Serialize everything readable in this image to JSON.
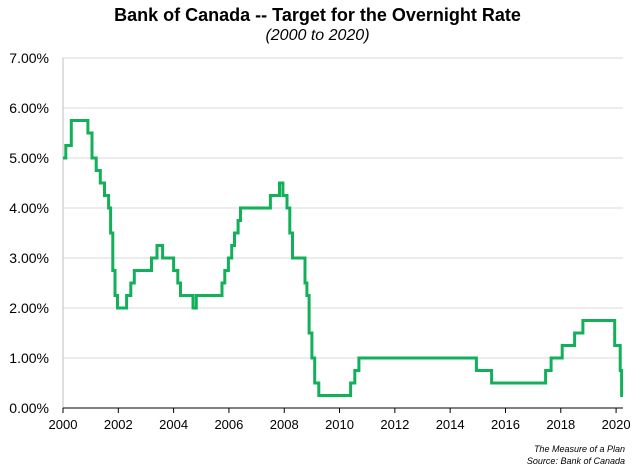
{
  "title": "Bank of Canada -- Target for the Overnight Rate",
  "subtitle": "(2000 to 2020)",
  "credits": {
    "line1": "The Measure of a Plan",
    "line2": "Source: Bank of Canada"
  },
  "colors": {
    "line": "#13B05A",
    "grid": "#d9d9d9",
    "axis": "#000000"
  },
  "chart_data": {
    "type": "line",
    "title": "Bank of Canada -- Target for the Overnight Rate",
    "subtitle": "(2000 to 2020)",
    "xlabel": "",
    "ylabel": "",
    "xlim": [
      2000,
      2020.25
    ],
    "ylim": [
      0,
      7
    ],
    "grid": "horizontal",
    "x_ticks": [
      2000,
      2002,
      2004,
      2006,
      2008,
      2010,
      2012,
      2014,
      2016,
      2018,
      2020
    ],
    "x_tick_labels": [
      "2000",
      "2002",
      "2004",
      "2006",
      "2008",
      "2010",
      "2012",
      "2014",
      "2016",
      "2018",
      "2020"
    ],
    "y_ticks": [
      0,
      1,
      2,
      3,
      4,
      5,
      6,
      7
    ],
    "y_tick_labels": [
      "0.00%",
      "1.00%",
      "2.00%",
      "3.00%",
      "4.00%",
      "5.00%",
      "6.00%",
      "7.00%"
    ],
    "series": [
      {
        "step": true,
        "x": [
          2000,
          2000.1,
          2000.3,
          2000.9,
          2001.05,
          2001.2,
          2001.35,
          2001.5,
          2001.65,
          2001.72,
          2001.8,
          2001.88,
          2001.97,
          2002.3,
          2002.45,
          2002.58,
          2003.2,
          2003.4,
          2003.6,
          2004.0,
          2004.15,
          2004.25,
          2004.7,
          2004.82,
          2005.75,
          2005.85,
          2005.98,
          2006.1,
          2006.2,
          2006.33,
          2006.42,
          2007.5,
          2007.83,
          2007.95,
          2008.1,
          2008.2,
          2008.3,
          2008.75,
          2008.82,
          2008.9,
          2009.0,
          2009.1,
          2009.25,
          2010.4,
          2010.55,
          2010.7,
          2014.95,
          2015.5,
          2017.45,
          2017.65,
          2018.05,
          2018.5,
          2018.8,
          2019.95,
          2020.15,
          2020.2,
          2020.25
        ],
        "y": [
          5.0,
          5.25,
          5.75,
          5.5,
          5.0,
          4.75,
          4.5,
          4.25,
          4.0,
          3.5,
          2.75,
          2.25,
          2.0,
          2.25,
          2.5,
          2.75,
          3.0,
          3.25,
          3.0,
          2.75,
          2.5,
          2.25,
          2.0,
          2.25,
          2.5,
          2.75,
          3.0,
          3.25,
          3.5,
          3.75,
          4.0,
          4.25,
          4.5,
          4.25,
          4.0,
          3.5,
          3.0,
          2.5,
          2.25,
          1.5,
          1.0,
          0.5,
          0.25,
          0.5,
          0.75,
          1.0,
          0.75,
          0.5,
          0.75,
          1.0,
          1.25,
          1.5,
          1.75,
          1.25,
          0.75,
          0.25,
          0.25
        ]
      }
    ]
  }
}
